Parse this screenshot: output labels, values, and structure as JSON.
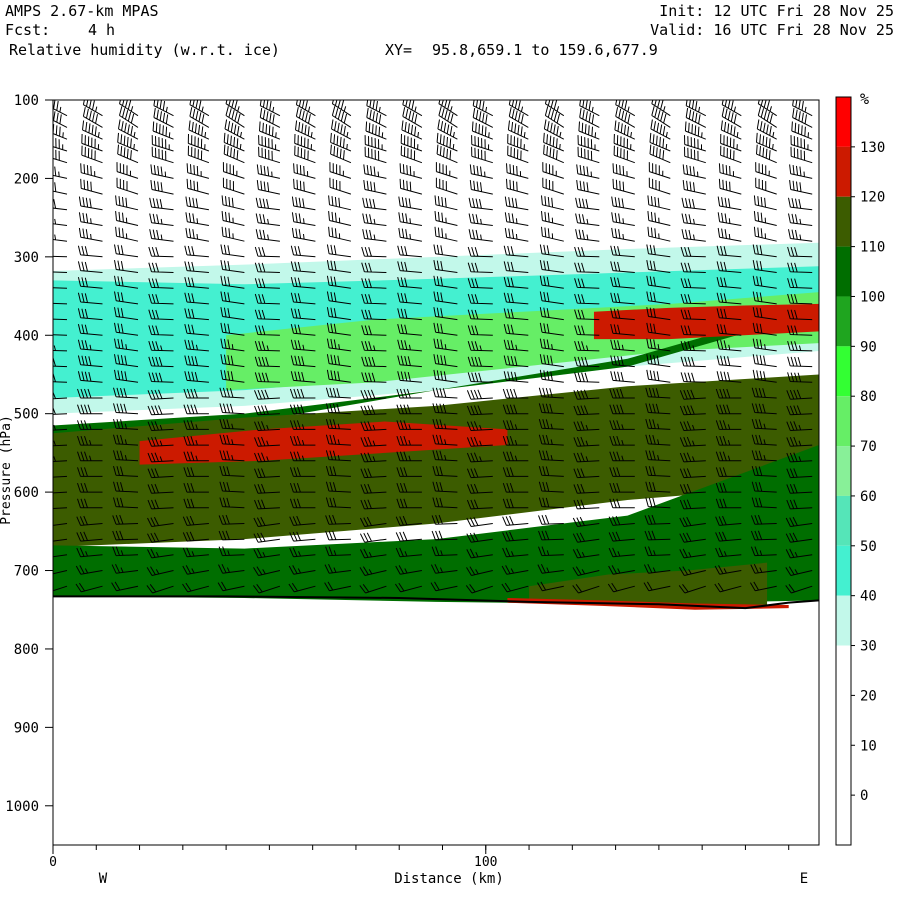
{
  "header": {
    "model": "AMPS 2.67-km MPAS",
    "fcst_label": "Fcst:",
    "fcst_value": "4 h",
    "field": "Relative humidity (w.r.t. ice)",
    "xy_label": "XY=",
    "xy_value": "95.8,659.1 to 159.6,677.9",
    "init": "Init: 12 UTC Fri 28 Nov 25",
    "valid": "Valid: 16 UTC Fri 28 Nov 25"
  },
  "chart_data": {
    "type": "heatmap",
    "title": "Relative humidity (w.r.t. ice)",
    "xlabel": "Distance (km)",
    "ylabel": "Pressure (hPa)",
    "xlim": [
      0,
      177
    ],
    "ylim": [
      1050,
      100
    ],
    "x_ticks": [
      0,
      100
    ],
    "x_tick_labels": [
      "0",
      "100"
    ],
    "y_ticks": [
      100,
      200,
      300,
      400,
      500,
      600,
      700,
      800,
      900,
      1000
    ],
    "y_tick_labels": [
      "100",
      "200",
      "300",
      "400",
      "500",
      "600",
      "700",
      "800",
      "900",
      "1000"
    ],
    "end_labels": {
      "left": "W",
      "right": "E"
    },
    "colorbar": {
      "unit_label": "%",
      "levels": [
        130,
        120,
        110,
        100,
        90,
        80,
        70,
        60,
        50,
        40,
        30,
        20,
        10,
        0
      ],
      "level_labels": [
        "130",
        "120",
        "110",
        "100",
        "90",
        "80",
        "70",
        "60",
        "50",
        "40",
        "30",
        "20",
        "10",
        "0"
      ],
      "colors": [
        "#ff0000",
        "#cc1a00",
        "#3c5c00",
        "#006e00",
        "#1fa51f",
        "#33ff33",
        "#66ee66",
        "#88f098",
        "#55e5b8",
        "#44f0d0",
        "#c2f8ea",
        "#ffffff",
        "#ffffff",
        "#ffffff",
        "#ffffff"
      ]
    },
    "terrain_pressure": [
      [
        0,
        733
      ],
      [
        40,
        733
      ],
      [
        80,
        735
      ],
      [
        110,
        740
      ],
      [
        140,
        743
      ],
      [
        160,
        748
      ],
      [
        170,
        741
      ],
      [
        177,
        738
      ]
    ],
    "regions": [
      {
        "rh": 35,
        "x": [
          0,
          177
        ],
        "top": [
          318,
          310,
          300,
          290,
          282
        ],
        "bottom": [
          500,
          490,
          470,
          440,
          420
        ]
      },
      {
        "rh": 45,
        "x": [
          0,
          177
        ],
        "top": [
          330,
          335,
          328,
          320,
          312
        ],
        "bottom": [
          480,
          470,
          450,
          420,
          400
        ]
      },
      {
        "rh": 75,
        "x": [
          40,
          177
        ],
        "top": [
          400,
          380,
          370,
          360,
          345
        ],
        "bottom": [
          470,
          460,
          440,
          420,
          410
        ]
      },
      {
        "rh": 100,
        "x": [
          0,
          177
        ],
        "top": [
          515,
          500,
          470,
          430,
          360
        ],
        "bottom": [
          528,
          512,
          470,
          440,
          370
        ]
      },
      {
        "rh": 115,
        "x": [
          0,
          177
        ],
        "top": [
          525,
          505,
          490,
          465,
          450
        ],
        "bottom": [
          670,
          660,
          640,
          610,
          590
        ]
      },
      {
        "rh": 125,
        "x": [
          20,
          105
        ],
        "top": [
          535,
          520,
          510,
          520
        ],
        "bottom": [
          565,
          560,
          550,
          540
        ]
      },
      {
        "rh": 125,
        "x": [
          125,
          177
        ],
        "top": [
          370,
          365,
          362,
          360
        ],
        "bottom": [
          405,
          405,
          400,
          395
        ]
      },
      {
        "rh": 105,
        "x": [
          0,
          177
        ],
        "top": [
          668,
          672,
          660,
          630,
          540
        ],
        "bottom": [
          733,
          735,
          740,
          743,
          738
        ]
      },
      {
        "rh": 115,
        "x": [
          110,
          165
        ],
        "top": [
          720,
          705,
          700,
          690
        ],
        "bottom": [
          740,
          742,
          745,
          748
        ]
      },
      {
        "rh": 125,
        "x": [
          105,
          170
        ],
        "top": [
          735,
          738,
          742,
          744
        ],
        "bottom": [
          741,
          745,
          750,
          748
        ]
      }
    ],
    "wind_barbs": {
      "columns_x": [
        0,
        8.2,
        16.4,
        24.6,
        32.8,
        41,
        49.2,
        57.4,
        65.6,
        73.8,
        82,
        90.2,
        98.4,
        106.6,
        114.8,
        123,
        131.2,
        139.4,
        147.6,
        155.8,
        164,
        172.2
      ],
      "levels_p": [
        120,
        135,
        150,
        165,
        180,
        200,
        220,
        240,
        260,
        280,
        300,
        320,
        340,
        360,
        380,
        400,
        420,
        440,
        460,
        480,
        500,
        520,
        540,
        560,
        580,
        600,
        620,
        640,
        660,
        680,
        700,
        720
      ],
      "speed_kt_by_level": [
        45,
        50,
        55,
        55,
        50,
        45,
        40,
        40,
        35,
        35,
        30,
        30,
        30,
        30,
        30,
        30,
        35,
        40,
        40,
        40,
        40,
        35,
        35,
        35,
        30,
        30,
        30,
        30,
        30,
        25,
        25,
        20
      ],
      "direction_deg_by_level": [
        300,
        300,
        295,
        290,
        290,
        285,
        285,
        280,
        280,
        280,
        275,
        275,
        275,
        275,
        275,
        275,
        275,
        275,
        275,
        270,
        270,
        270,
        270,
        270,
        270,
        270,
        270,
        265,
        265,
        265,
        260,
        255
      ]
    }
  }
}
